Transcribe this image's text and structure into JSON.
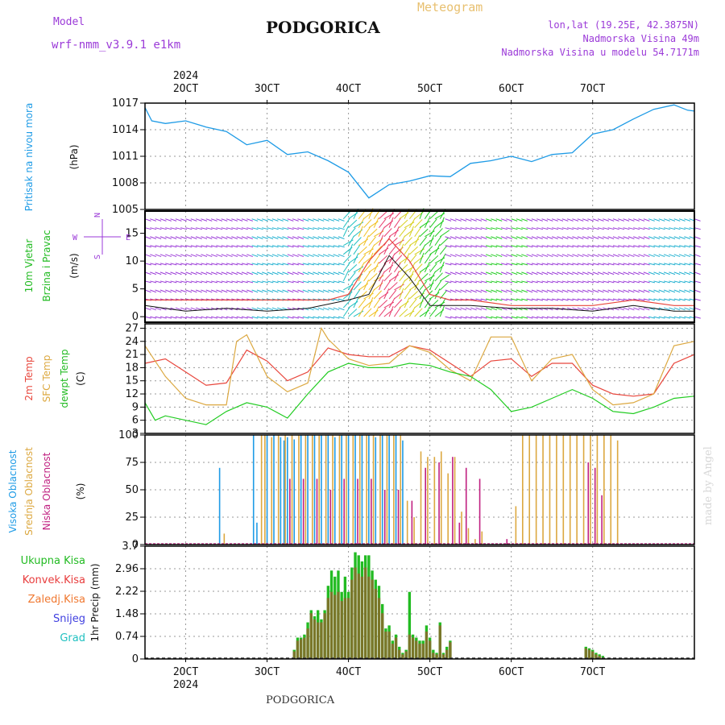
{
  "header": {
    "model_label": "Model",
    "model_name": "wrf-nmm_v3.9.1 e1km",
    "city": "PODGORICA",
    "product": "Meteogram",
    "lonlat": "lon,lat (19.25E, 42.3875N)",
    "elevation": "Nadmorska Visina 49m",
    "model_elevation": "Nadmorska Visina u modelu 54.7171m",
    "footer_city": "PODGORICA",
    "watermark": "made by Angel"
  },
  "colors": {
    "pressure": "#1e9be6",
    "red_temp": "#e8463c",
    "sfc_temp": "#dca840",
    "dewpt": "#22cc22",
    "high_cloud": "#1e9be6",
    "mid_cloud": "#dca840",
    "low_cloud": "#c02080",
    "total_precip": "#22bb22",
    "conv_precip": "#e83c3c",
    "strat_precip": "#f07830",
    "snow": "#4040e0",
    "hail": "#20c0c0",
    "purple": "#9b3ad8",
    "gold": "#e8c070"
  },
  "chart_data": {
    "type": "line",
    "time_axis": {
      "year": "2024",
      "ticks": [
        "2OCT",
        "3OCT",
        "4OCT",
        "5OCT",
        "6OCT",
        "7OCT"
      ],
      "start_hour": -12,
      "end_hour": 150
    },
    "panels": [
      {
        "id": "pressure",
        "ylabel": [
          "Pritisak na nivou mora",
          "(hPa)"
        ],
        "yticks": [
          "1017",
          "1014",
          "1011",
          "1008",
          "1005"
        ],
        "ylim": [
          1005,
          1017
        ],
        "series": [
          {
            "name": "Pritisak na nivou mora",
            "hours": [
              -12,
              -10,
              -6,
              0,
              6,
              12,
              18,
              24,
              30,
              36,
              42,
              48,
              54,
              60,
              66,
              72,
              78,
              84,
              90,
              96,
              102,
              108,
              114,
              120,
              126,
              132,
              138,
              144,
              148,
              150
            ],
            "values": [
              1016.5,
              1015,
              1014.7,
              1015,
              1014.3,
              1013.8,
              1012.3,
              1012.8,
              1011.2,
              1011.5,
              1010.5,
              1009.2,
              1006.3,
              1007.8,
              1008.2,
              1008.8,
              1008.7,
              1010.2,
              1010.5,
              1011,
              1010.4,
              1011.2,
              1011.4,
              1013.5,
              1014,
              1015.2,
              1016.3,
              1016.8,
              1016.2,
              1016.1
            ]
          }
        ]
      },
      {
        "id": "wind",
        "ylabel": [
          "10m Vjetar",
          "Brzina i Pravac",
          "(m/s)"
        ],
        "direction_labels": {
          "west": "W",
          "east": "E",
          "south": "S",
          "north": "N"
        },
        "yticks": [
          "15",
          "10",
          "5",
          "0"
        ],
        "ylim": [
          -1,
          19
        ],
        "speed": {
          "hours": [
            -12,
            0,
            12,
            24,
            36,
            48,
            54,
            60,
            66,
            72,
            78,
            84,
            96,
            108,
            120,
            132,
            144,
            150
          ],
          "values": [
            2,
            1,
            1.5,
            1,
            1.5,
            3,
            4,
            11,
            7,
            2,
            2,
            2,
            1.5,
            1.5,
            1,
            2,
            1,
            1
          ]
        },
        "gust": {
          "hours": [
            -12,
            0,
            12,
            24,
            36,
            42,
            48,
            54,
            60,
            66,
            72,
            78,
            84,
            96,
            108,
            120,
            132,
            144,
            150
          ],
          "values": [
            3,
            3,
            3,
            3,
            3,
            3,
            4,
            10,
            14,
            10,
            4,
            3,
            3,
            2,
            2,
            2,
            3,
            2,
            2
          ]
        }
      },
      {
        "id": "temperature",
        "ylabel": [
          "2m Temp",
          "SFC Temp",
          "dewpt Temp",
          "(C)"
        ],
        "yticks": [
          "27",
          "24",
          "21",
          "18",
          "15",
          "12",
          "9",
          "6",
          "3"
        ],
        "ylim": [
          3,
          28
        ],
        "series": [
          {
            "name": "2m Temp",
            "hours": [
              -12,
              -6,
              0,
              6,
              12,
              18,
              24,
              30,
              36,
              42,
              48,
              54,
              60,
              66,
              72,
              78,
              84,
              90,
              96,
              102,
              108,
              114,
              120,
              126,
              132,
              138,
              144,
              150
            ],
            "values": [
              19,
              20,
              17,
              14,
              14.5,
              22,
              19.5,
              15,
              17,
              22.5,
              21,
              20.5,
              20.5,
              23,
              22,
              19,
              16,
              19.5,
              20,
              16,
              19,
              19,
              14,
              12,
              11.5,
              12,
              19,
              21
            ]
          },
          {
            "name": "SFC Temp",
            "hours": [
              -12,
              -6,
              0,
              6,
              12,
              15,
              18,
              24,
              30,
              36,
              40,
              42,
              48,
              54,
              60,
              66,
              72,
              78,
              84,
              90,
              96,
              102,
              108,
              114,
              120,
              126,
              132,
              138,
              144,
              150
            ],
            "values": [
              23,
              16,
              11,
              9.5,
              9.5,
              24,
              25.5,
              16,
              12.5,
              14.5,
              27,
              24.5,
              20,
              18.5,
              19,
              23,
              21.5,
              17.5,
              15,
              25,
              25,
              15,
              20,
              21,
              13,
              9.5,
              10,
              12,
              23,
              24
            ]
          },
          {
            "name": "dewpt Temp",
            "hours": [
              -12,
              -9,
              -6,
              0,
              6,
              12,
              18,
              24,
              30,
              36,
              42,
              48,
              54,
              60,
              66,
              72,
              78,
              84,
              90,
              96,
              102,
              108,
              114,
              120,
              126,
              132,
              138,
              144,
              150
            ],
            "values": [
              10,
              6,
              7,
              6,
              5,
              8,
              10,
              9,
              6.5,
              12,
              17,
              19,
              18,
              18,
              19,
              18.5,
              17,
              16,
              13,
              8,
              9,
              11,
              13,
              11,
              8,
              7.5,
              9,
              11,
              11.5
            ]
          }
        ]
      },
      {
        "id": "clouds",
        "ylabel": [
          "Visoka Oblacnost",
          "Srednja Oblacnost",
          "Niska Oblacnost",
          "(%)"
        ],
        "yticks": [
          "100",
          "75",
          "50",
          "25",
          "0"
        ],
        "ylim": [
          0,
          100
        ],
        "high": {
          "hours": [
            10,
            20,
            21,
            24,
            26,
            28,
            29,
            30,
            32,
            34,
            36,
            38,
            40,
            42,
            44,
            46,
            48,
            50,
            52,
            54,
            56,
            58,
            60,
            62,
            64
          ],
          "values": [
            70,
            100,
            20,
            100,
            100,
            98,
            95,
            98,
            96,
            100,
            100,
            100,
            100,
            100,
            98,
            100,
            100,
            100,
            100,
            100,
            98,
            100,
            100,
            100,
            95
          ]
        },
        "mid": {
          "hours": [
            11,
            22,
            23,
            25,
            27,
            29,
            31,
            33,
            35,
            37,
            39,
            41,
            43,
            45,
            47,
            49,
            51,
            53,
            55,
            57,
            59,
            61,
            63,
            65,
            67,
            69,
            71,
            73,
            75,
            77,
            79,
            81,
            83,
            85,
            87,
            97,
            99,
            101,
            103,
            105,
            107,
            109,
            111,
            113,
            115,
            117,
            119,
            121,
            123,
            125,
            127
          ],
          "values": [
            10,
            100,
            100,
            98,
            100,
            100,
            100,
            100,
            100,
            100,
            100,
            100,
            100,
            100,
            100,
            100,
            100,
            100,
            100,
            100,
            100,
            100,
            100,
            40,
            25,
            85,
            80,
            80,
            85,
            65,
            80,
            30,
            15,
            5,
            12,
            35,
            100,
            100,
            100,
            100,
            100,
            100,
            100,
            100,
            100,
            100,
            100,
            100,
            100,
            100,
            95
          ]
        },
        "low": {
          "hours": [
            30,
            34,
            38,
            42,
            46,
            50,
            54,
            58,
            62,
            66,
            70,
            74,
            78,
            80,
            82,
            86,
            94,
            118,
            120,
            122
          ],
          "values": [
            60,
            60,
            60,
            50,
            60,
            60,
            60,
            50,
            50,
            40,
            70,
            75,
            80,
            20,
            70,
            60,
            5,
            75,
            70,
            45
          ]
        }
      },
      {
        "id": "precip",
        "ylabel": [
          "1hr Precip (mm)"
        ],
        "legend": [
          "Ukupna Kisa",
          "Konvek.Kisa",
          "Zaledj.Kisa",
          "Snijeg",
          "Grad"
        ],
        "yticks": [
          "3.7",
          "2.96",
          "2.22",
          "1.48",
          "0.74",
          "0"
        ],
        "ylim": [
          0,
          3.7
        ],
        "total": {
          "hours": [
            32,
            33,
            34,
            35,
            36,
            37,
            38,
            39,
            40,
            41,
            42,
            43,
            44,
            45,
            46,
            47,
            48,
            49,
            50,
            51,
            52,
            53,
            54,
            55,
            56,
            57,
            58,
            59,
            60,
            61,
            62,
            63,
            64,
            65,
            66,
            67,
            68,
            69,
            70,
            71,
            72,
            73,
            74,
            75,
            76,
            77,
            78,
            118,
            119,
            120,
            121,
            122,
            123
          ],
          "values": [
            0.3,
            0.7,
            0.7,
            0.8,
            1.2,
            1.6,
            1.4,
            1.6,
            1.3,
            1.6,
            2.4,
            2.9,
            2.7,
            2.9,
            2.2,
            2.7,
            2.2,
            3.0,
            3.5,
            3.4,
            3.2,
            3.4,
            3.4,
            2.9,
            2.6,
            2.4,
            1.8,
            1.0,
            1.1,
            0.6,
            0.8,
            0.4,
            0.2,
            0.3,
            2.2,
            0.8,
            0.7,
            0.6,
            0.6,
            1.1,
            0.7,
            0.3,
            0.2,
            1.2,
            0.2,
            0.4,
            0.6,
            0.4,
            0.35,
            0.3,
            0.2,
            0.15,
            0.1
          ]
        },
        "conv": {
          "hours": [
            32,
            33,
            34,
            35,
            36,
            37,
            38,
            39,
            40,
            41,
            42,
            43,
            44,
            45,
            46,
            47,
            48,
            49,
            50,
            51,
            52,
            53,
            54,
            55,
            56,
            57,
            58,
            59,
            60,
            61,
            62,
            63,
            64,
            65,
            66,
            67,
            68,
            69,
            70,
            71,
            72,
            73,
            74,
            75,
            76,
            77,
            78,
            118,
            119,
            120,
            121,
            122,
            123
          ],
          "values": [
            0.25,
            0.6,
            0.65,
            0.7,
            1.0,
            1.5,
            1.3,
            1.2,
            1.2,
            1.5,
            2.0,
            2.2,
            2.1,
            2.2,
            1.9,
            2.0,
            2.0,
            2.6,
            3.0,
            2.8,
            2.7,
            3.0,
            2.7,
            2.6,
            2.3,
            2.0,
            1.5,
            0.9,
            0.9,
            0.5,
            0.7,
            0.3,
            0.15,
            0.25,
            0.8,
            0.7,
            0.6,
            0.5,
            0.5,
            0.9,
            0.6,
            0.2,
            0.15,
            1.1,
            0.15,
            0.3,
            0.55,
            0.35,
            0.3,
            0.25,
            0.15,
            0.1,
            0.05
          ]
        }
      }
    ]
  }
}
